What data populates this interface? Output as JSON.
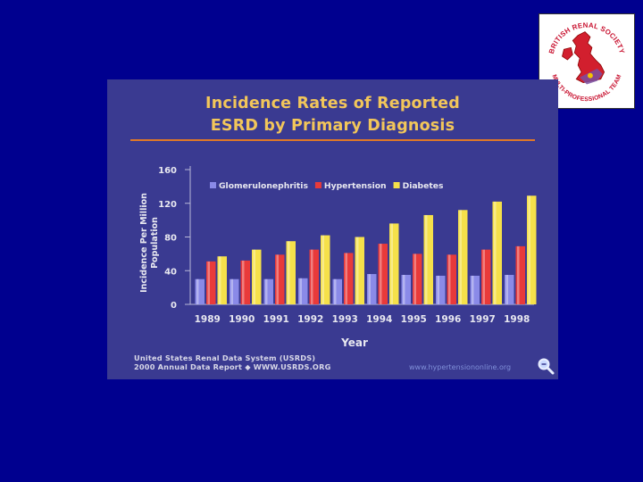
{
  "logo": {
    "arc_top": "BRITISH RENAL SOCIETY",
    "arc_bottom": "MULTI-PROFESSIONAL TEAM",
    "icon": "uk-map-icon"
  },
  "chart_data": {
    "type": "bar",
    "title": "Incidence Rates of Reported",
    "title_line2": "ESRD by Primary Diagnosis",
    "xlabel": "Year",
    "ylabel": "Incidence Per Million",
    "ylabel_line2": "Population",
    "ylim": [
      0,
      160
    ],
    "yticks": [
      0,
      40,
      80,
      120,
      160
    ],
    "categories": [
      "1989",
      "1990",
      "1991",
      "1992",
      "1993",
      "1994",
      "1995",
      "1996",
      "1997",
      "1998"
    ],
    "series": [
      {
        "name": "Glomerulonephritis",
        "color": "#8a8ae8",
        "values": [
          30,
          30,
          30,
          31,
          30,
          36,
          35,
          34,
          34,
          35
        ]
      },
      {
        "name": "Hypertension",
        "color": "#e83a3a",
        "values": [
          51,
          52,
          59,
          65,
          61,
          72,
          60,
          59,
          65,
          69
        ]
      },
      {
        "name": "Diabetes",
        "color": "#f5e04a",
        "values": [
          57,
          65,
          75,
          82,
          80,
          96,
          106,
          112,
          122,
          129
        ]
      }
    ],
    "legend_placement": "top-left"
  },
  "source": {
    "line1": "United States Renal Data System (USRDS)",
    "line2": "2000 Annual Data Report ◆ WWW.USRDS.ORG",
    "website": "www.hypertensiononline.org",
    "zoom_icon": "magnifier-icon"
  }
}
